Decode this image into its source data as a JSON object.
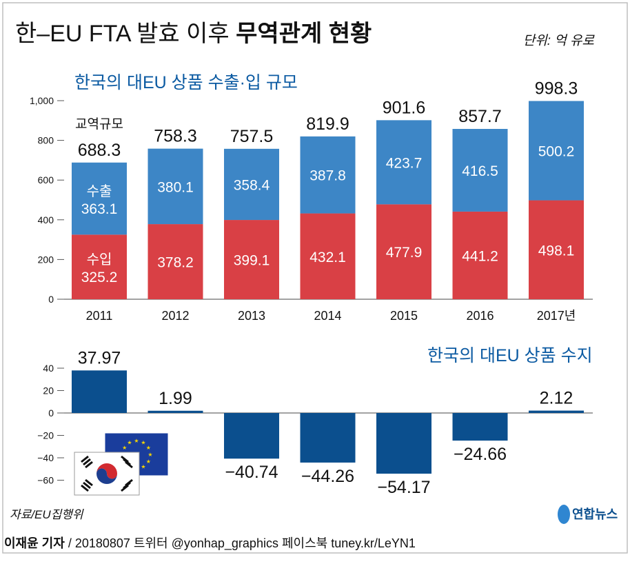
{
  "title": {
    "regular": "한–EU FTA 발효 이후 ",
    "bold": "무역관계 현황"
  },
  "unit": "단위: 억 유로",
  "source": "자료/EU집행위",
  "logo": "연합뉴스",
  "footer": {
    "author": "이재윤 기자",
    "rest": " / 20180807   트위터 @yonhap_graphics  페이스북 tuney.kr/LeYN1"
  },
  "colors": {
    "export": "#3d86c6",
    "import": "#d94045",
    "balance": "#0b4f8e",
    "title_blue": "#0b5aa2"
  },
  "chart_data": [
    {
      "type": "bar",
      "stacked": true,
      "title": "한국의 대EU 상품 수출·입 규모",
      "categories": [
        "2011",
        "2012",
        "2013",
        "2014",
        "2015",
        "2016",
        "2017년"
      ],
      "series": [
        {
          "name": "수입",
          "values": [
            325.2,
            378.2,
            399.1,
            432.1,
            477.9,
            441.2,
            498.1
          ]
        },
        {
          "name": "수출",
          "values": [
            363.1,
            380.1,
            358.4,
            387.8,
            423.7,
            416.5,
            500.2
          ]
        }
      ],
      "totals": [
        688.3,
        758.3,
        757.5,
        819.9,
        901.6,
        857.7,
        998.3
      ],
      "total_label": "교역규모",
      "yticks": [
        "0",
        "200",
        "400",
        "600",
        "800",
        "1,000"
      ],
      "ylim": [
        0,
        1000
      ]
    },
    {
      "type": "bar",
      "title": "한국의 대EU 상품 수지",
      "categories": [
        "2011",
        "2012",
        "2013",
        "2014",
        "2015",
        "2016",
        "2017"
      ],
      "values": [
        37.97,
        1.99,
        -40.74,
        -44.26,
        -54.17,
        -24.66,
        2.12
      ],
      "labels": [
        "37.97",
        "1.99",
        "−40.74",
        "−44.26",
        "−54.17",
        "−24.66",
        "2.12"
      ],
      "yticks": [
        "40",
        "20",
        "0",
        "−20",
        "−40",
        "−60"
      ],
      "ytick_values": [
        40,
        20,
        0,
        -20,
        -40,
        -60
      ],
      "ylim": [
        -60,
        40
      ]
    }
  ]
}
